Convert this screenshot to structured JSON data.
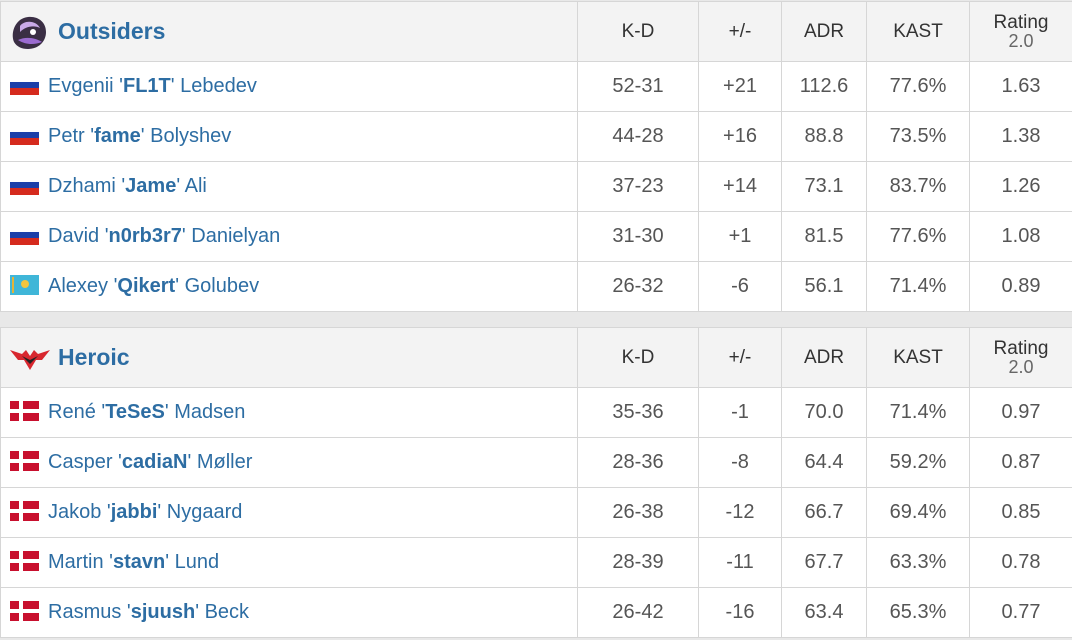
{
  "headers": {
    "kd": "K-D",
    "pm": "+/-",
    "adr": "ADR",
    "kast": "KAST",
    "rating_line1": "Rating",
    "rating_line2": "2.0"
  },
  "teams": [
    {
      "name": "Outsiders",
      "logo": "outsiders-logo",
      "players": [
        {
          "first": "Evgenii '",
          "nick": "FL1T",
          "last": "' Lebedev",
          "flag": "russia-flag",
          "kd": "52-31",
          "pm": "+21",
          "adr": "112.6",
          "kast": "77.6%",
          "rating": "1.63"
        },
        {
          "first": "Petr '",
          "nick": "fame",
          "last": "' Bolyshev",
          "flag": "russia-flag",
          "kd": "44-28",
          "pm": "+16",
          "adr": "88.8",
          "kast": "73.5%",
          "rating": "1.38"
        },
        {
          "first": "Dzhami '",
          "nick": "Jame",
          "last": "' Ali",
          "flag": "russia-flag",
          "kd": "37-23",
          "pm": "+14",
          "adr": "73.1",
          "kast": "83.7%",
          "rating": "1.26"
        },
        {
          "first": "David '",
          "nick": "n0rb3r7",
          "last": "' Danielyan",
          "flag": "russia-flag",
          "kd": "31-30",
          "pm": "+1",
          "adr": "81.5",
          "kast": "77.6%",
          "rating": "1.08"
        },
        {
          "first": "Alexey '",
          "nick": "Qikert",
          "last": "' Golubev",
          "flag": "kazakhstan-flag",
          "kd": "26-32",
          "pm": "-6",
          "adr": "56.1",
          "kast": "71.4%",
          "rating": "0.89"
        }
      ]
    },
    {
      "name": "Heroic",
      "logo": "heroic-logo",
      "players": [
        {
          "first": "René '",
          "nick": "TeSeS",
          "last": "' Madsen",
          "flag": "denmark-flag",
          "kd": "35-36",
          "pm": "-1",
          "adr": "70.0",
          "kast": "71.4%",
          "rating": "0.97"
        },
        {
          "first": "Casper '",
          "nick": "cadiaN",
          "last": "' Møller",
          "flag": "denmark-flag",
          "kd": "28-36",
          "pm": "-8",
          "adr": "64.4",
          "kast": "59.2%",
          "rating": "0.87"
        },
        {
          "first": "Jakob '",
          "nick": "jabbi",
          "last": "' Nygaard",
          "flag": "denmark-flag",
          "kd": "26-38",
          "pm": "-12",
          "adr": "66.7",
          "kast": "69.4%",
          "rating": "0.85"
        },
        {
          "first": "Martin '",
          "nick": "stavn",
          "last": "' Lund",
          "flag": "denmark-flag",
          "kd": "28-39",
          "pm": "-11",
          "adr": "67.7",
          "kast": "63.3%",
          "rating": "0.78"
        },
        {
          "first": "Rasmus '",
          "nick": "sjuush",
          "last": "' Beck",
          "flag": "denmark-flag",
          "kd": "26-42",
          "pm": "-16",
          "adr": "63.4",
          "kast": "65.3%",
          "rating": "0.77"
        }
      ]
    }
  ],
  "colors": {
    "link": "#2d6da3",
    "positive": "#2a9d2a",
    "negative": "#d93434"
  }
}
